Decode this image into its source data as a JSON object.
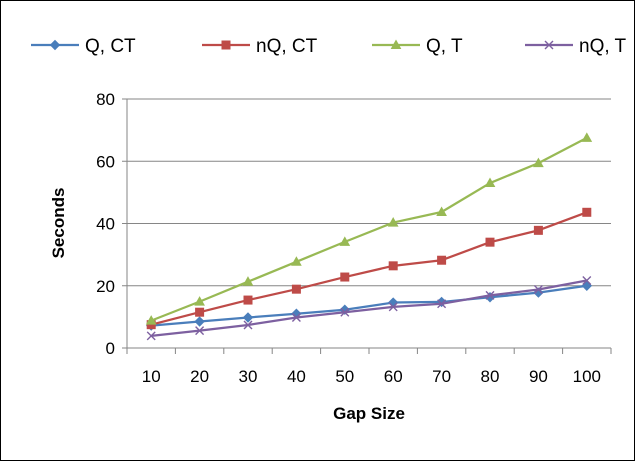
{
  "chart_data": {
    "type": "line",
    "title": "",
    "xlabel": "Gap Size",
    "ylabel": "Seconds",
    "categories": [
      "10",
      "20",
      "30",
      "40",
      "50",
      "60",
      "70",
      "80",
      "90",
      "100"
    ],
    "ylim": [
      0,
      80
    ],
    "yticks": [
      "0",
      "20",
      "40",
      "60",
      "80"
    ],
    "grid": true,
    "legend_position": "top",
    "series": [
      {
        "name": "Q, CT",
        "color": "#4a7ebb",
        "marker": "diamond",
        "values": [
          7.2,
          8.5,
          9.8,
          11,
          12.3,
          14.6,
          14.8,
          16.3,
          17.8,
          20
        ]
      },
      {
        "name": "nQ, CT",
        "color": "#be4b48",
        "marker": "square",
        "values": [
          7.5,
          11.5,
          15.4,
          18.9,
          22.8,
          26.4,
          28.2,
          34,
          37.8,
          43.6
        ]
      },
      {
        "name": "Q, T",
        "color": "#98b954",
        "marker": "triangle",
        "values": [
          8.8,
          14.9,
          21.3,
          27.7,
          34.1,
          40.3,
          43.7,
          53,
          59.4,
          67.5
        ]
      },
      {
        "name": "nQ, T",
        "color": "#7d60a0",
        "marker": "x",
        "values": [
          3.9,
          5.6,
          7.4,
          9.8,
          11.5,
          13.2,
          14.2,
          16.9,
          18.8,
          21.7
        ]
      }
    ]
  }
}
